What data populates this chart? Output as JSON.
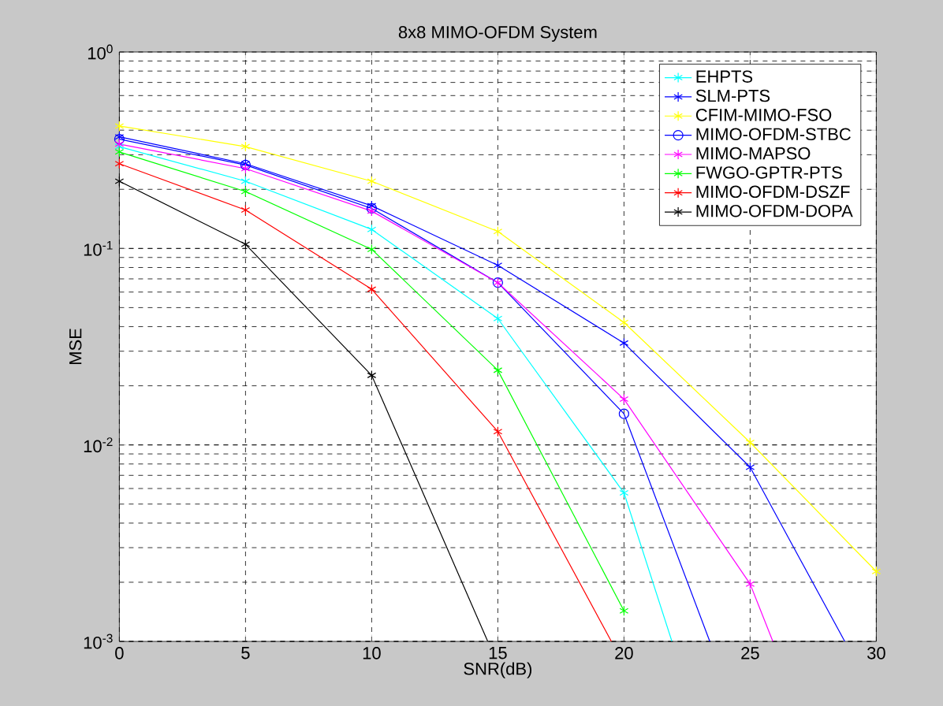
{
  "chart_data": {
    "type": "line",
    "title": "8x8 MIMO-OFDM System",
    "xlabel": "SNR(dB)",
    "ylabel": "MSE",
    "log": "y",
    "grid": true,
    "legend": "top right",
    "line_style": "solid",
    "xlim": [
      0,
      30
    ],
    "xticks": [
      0,
      5,
      10,
      15,
      20,
      25,
      30
    ],
    "ylim": [
      0.001,
      1
    ],
    "yticks": [
      {
        "value": 0.001,
        "label": "10$^{-3}$"
      },
      {
        "value": 0.01,
        "label": "10$^{-2}$"
      },
      {
        "value": 0.1,
        "label": "10$^{-1}$"
      },
      {
        "value": 1,
        "label": "10$^{0}$"
      }
    ],
    "series": [
      {
        "name": "EHPTS",
        "color": "#00ffff",
        "marker": "cross",
        "x": [
          0,
          5,
          10,
          15,
          20,
          21.9
        ],
        "values": [
          0.33,
          0.22,
          0.125,
          0.044,
          0.0057,
          0.001
        ]
      },
      {
        "name": "SLM-PTS",
        "color": "#0000ff",
        "marker": "cross",
        "x": [
          0,
          5,
          10,
          15,
          20,
          25,
          28.75
        ],
        "values": [
          0.37,
          0.27,
          0.165,
          0.082,
          0.033,
          0.0077,
          0.001
        ]
      },
      {
        "name": "CFIM-MIMO-FSO",
        "color": "#ffff00",
        "marker": "cross",
        "x": [
          0,
          5,
          10,
          15,
          20,
          25,
          30
        ],
        "values": [
          0.42,
          0.33,
          0.22,
          0.122,
          0.042,
          0.0103,
          0.00227
        ]
      },
      {
        "name": "MIMO-OFDM-STBC",
        "color": "#0000ff",
        "marker": "circle",
        "x": [
          0,
          5,
          10,
          15,
          20,
          23.4
        ],
        "values": [
          0.36,
          0.266,
          0.16,
          0.067,
          0.0144,
          0.001
        ]
      },
      {
        "name": "MIMO-MAPSO",
        "color": "#ff00ff",
        "marker": "cross",
        "x": [
          0,
          5,
          10,
          15,
          20,
          25,
          25.9
        ],
        "values": [
          0.34,
          0.255,
          0.155,
          0.067,
          0.0171,
          0.00196,
          0.001
        ]
      },
      {
        "name": "FWGO-GPTR-PTS",
        "color": "#00ff00",
        "marker": "cross",
        "x": [
          0,
          5,
          10,
          15,
          20
        ],
        "values": [
          0.31,
          0.195,
          0.099,
          0.024,
          0.00143
        ]
      },
      {
        "name": "MIMO-OFDM-DSZF",
        "color": "#ff0000",
        "marker": "cross",
        "x": [
          0,
          5,
          10,
          15,
          19.5
        ],
        "values": [
          0.27,
          0.157,
          0.062,
          0.0117,
          0.001
        ]
      },
      {
        "name": "MIMO-OFDM-DOPA",
        "color": "#000000",
        "marker": "cross",
        "x": [
          0,
          5,
          10,
          14.6
        ],
        "values": [
          0.22,
          0.105,
          0.0226,
          0.001
        ]
      }
    ]
  }
}
